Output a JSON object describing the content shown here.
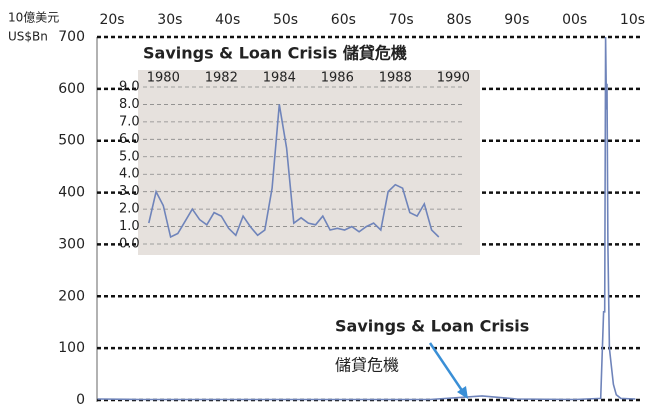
{
  "chart_data": [
    {
      "type": "line",
      "ylabel": [
        "10億美元",
        "US$Bn"
      ],
      "xlim": [
        1917.4,
        2011.3
      ],
      "xticks": [
        {
          "value": 1920,
          "label": "20s"
        },
        {
          "value": 1930,
          "label": "30s"
        },
        {
          "value": 1940,
          "label": "40s"
        },
        {
          "value": 1950,
          "label": "50s"
        },
        {
          "value": 1960,
          "label": "60s"
        },
        {
          "value": 1970,
          "label": "70s"
        },
        {
          "value": 1980,
          "label": "80s"
        },
        {
          "value": 1990,
          "label": "90s"
        },
        {
          "value": 2000,
          "label": "00s"
        },
        {
          "value": 2010,
          "label": "10s"
        }
      ],
      "ylim": [
        0,
        700
      ],
      "yticks": [
        0,
        100,
        200,
        300,
        400,
        500,
        600,
        700
      ],
      "grid": true,
      "annotations": [
        "Savings & Loan Crisis",
        "儲貸危機"
      ],
      "x": [
        1917.5,
        1925,
        1935,
        1945,
        1955,
        1965,
        1975,
        1984,
        1990,
        2000,
        2004.5,
        2005.0,
        2005.2,
        2005.35,
        2005.5,
        2005.6,
        2005.75,
        2006.0,
        2006.3,
        2006.7,
        2007.2,
        2008,
        2010.5
      ],
      "series": [
        {
          "name": "US$Bn",
          "color": "#6f84ba",
          "values": [
            2,
            1,
            1,
            1,
            1,
            1,
            1,
            8,
            2,
            1,
            3,
            170,
            170,
            700,
            560,
            610,
            300,
            100,
            70,
            30,
            10,
            3,
            2
          ]
        }
      ]
    },
    {
      "type": "line",
      "title": "Savings & Loan Crisis  儲貸危機",
      "xlim": [
        1979.3,
        1990.3
      ],
      "xticks": [
        1980,
        1982,
        1984,
        1986,
        1988,
        1990
      ],
      "ylim": [
        0,
        9
      ],
      "yticks": [
        {
          "value": 0,
          "label": "0.0"
        },
        {
          "value": 1,
          "label": "1.0"
        },
        {
          "value": 2,
          "label": "2.0"
        },
        {
          "value": 3,
          "label": "3.0"
        },
        {
          "value": 4,
          "label": "4.0"
        },
        {
          "value": 5,
          "label": "5.0"
        },
        {
          "value": 6,
          "label": "6.0"
        },
        {
          "value": 7,
          "label": "7.0"
        },
        {
          "value": 8,
          "label": "8.0"
        },
        {
          "value": 9,
          "label": "9.0"
        }
      ],
      "grid": true,
      "x": [
        1979.5,
        1979.75,
        1980,
        1980.25,
        1980.5,
        1980.75,
        1981,
        1981.25,
        1981.5,
        1981.75,
        1982,
        1982.25,
        1982.5,
        1982.75,
        1983,
        1983.25,
        1983.5,
        1983.75,
        1984,
        1984.25,
        1984.5,
        1984.75,
        1985,
        1985.25,
        1985.5,
        1985.75,
        1986,
        1986.25,
        1986.5,
        1986.75,
        1987,
        1987.25,
        1987.5,
        1987.75,
        1988,
        1988.25,
        1988.5,
        1988.75,
        1989,
        1989.25,
        1989.5
      ],
      "series": [
        {
          "name": "US$Bn",
          "color": "#6f84ba",
          "values": [
            1.2,
            3.0,
            2.2,
            0.4,
            0.6,
            1.3,
            2.0,
            1.4,
            1.1,
            1.8,
            1.6,
            0.9,
            0.5,
            1.6,
            1.0,
            0.5,
            0.8,
            3.2,
            8.0,
            5.5,
            1.2,
            1.5,
            1.2,
            1.1,
            1.6,
            0.8,
            0.9,
            0.8,
            1.0,
            0.7,
            1.0,
            1.2,
            0.8,
            3.0,
            3.4,
            3.2,
            1.8,
            1.6,
            2.3,
            0.8,
            0.4
          ]
        }
      ]
    }
  ]
}
